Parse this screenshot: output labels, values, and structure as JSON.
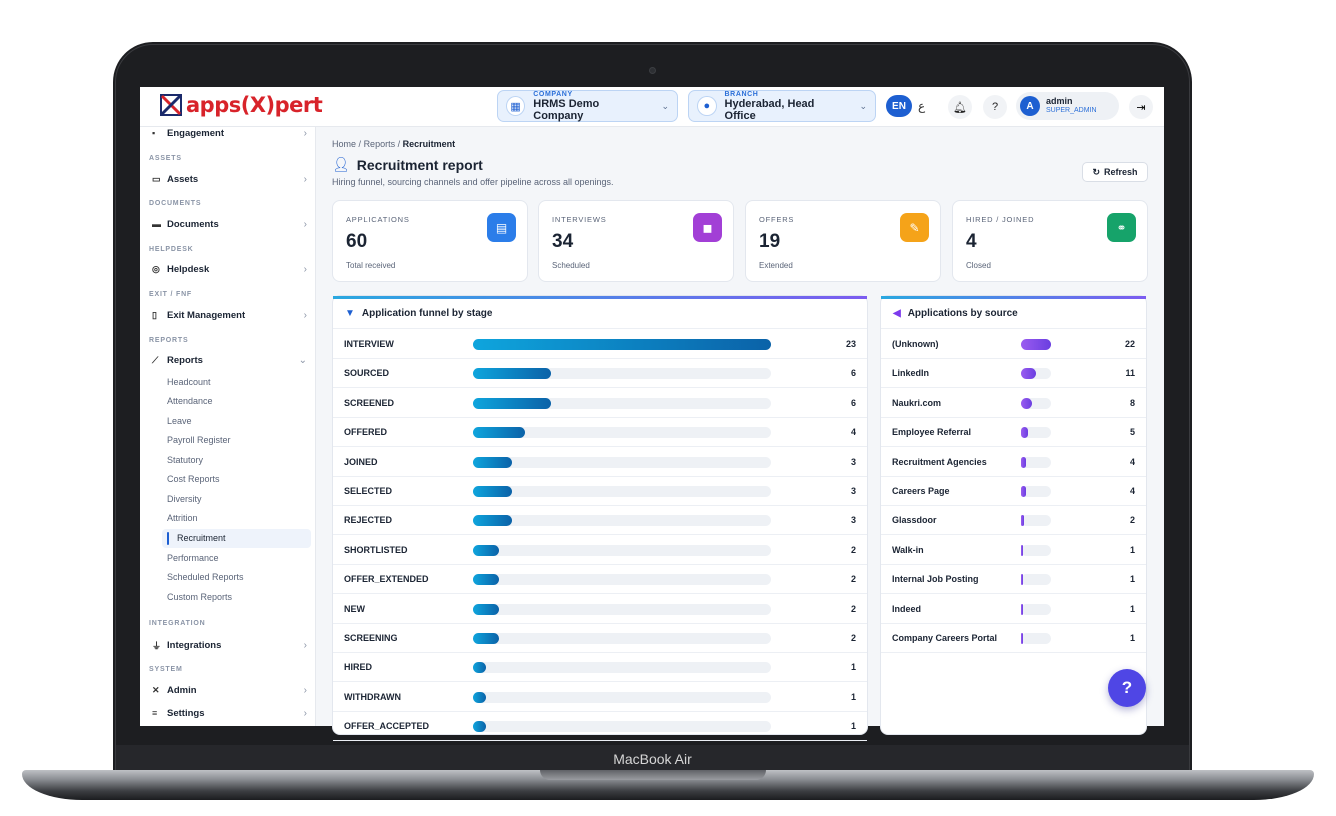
{
  "device": {
    "label": "MacBook Air"
  },
  "app": {
    "logo_text": "apps",
    "logo_text_b": "(X)",
    "logo_text_c": "pert"
  },
  "topbar": {
    "company_caption": "COMPANY",
    "company_value": "HRMS Demo Company",
    "branch_caption": "BRANCH",
    "branch_value": "Hyderabad, Head Office",
    "lang_en": "EN",
    "lang_ar": "ع",
    "user_initial": "A",
    "user_name": "admin",
    "user_role": "SUPER_ADMIN"
  },
  "sidebar": {
    "engagement": "Engagement",
    "sec_assets": "ASSETS",
    "assets": "Assets",
    "sec_documents": "DOCUMENTS",
    "documents": "Documents",
    "sec_helpdesk": "HELPDESK",
    "helpdesk": "Helpdesk",
    "sec_exit": "EXIT / FNF",
    "exit": "Exit Management",
    "sec_reports": "REPORTS",
    "reports": "Reports",
    "sub": [
      "Headcount",
      "Attendance",
      "Leave",
      "Payroll Register",
      "Statutory",
      "Cost Reports",
      "Diversity",
      "Attrition",
      "Recruitment",
      "Performance",
      "Scheduled Reports",
      "Custom Reports"
    ],
    "sec_integration": "INTEGRATION",
    "integrations": "Integrations",
    "sec_system": "SYSTEM",
    "admin": "Admin",
    "settings": "Settings"
  },
  "breadcrumb": {
    "home": "Home",
    "sep": "/",
    "reports": "Reports",
    "current": "Recruitment"
  },
  "page": {
    "title": "Recruitment report",
    "subtitle": "Hiring funnel, sourcing channels and offer pipeline across all openings.",
    "refresh": "Refresh"
  },
  "kpis": [
    {
      "label": "APPLICATIONS",
      "value": "60",
      "sub": "Total received",
      "color": "#2b7de9"
    },
    {
      "label": "INTERVIEWS",
      "value": "34",
      "sub": "Scheduled",
      "color": "#a23fd6"
    },
    {
      "label": "OFFERS",
      "value": "19",
      "sub": "Extended",
      "color": "#f5a319"
    },
    {
      "label": "HIRED / JOINED",
      "value": "4",
      "sub": "Closed",
      "color": "#16a36a"
    }
  ],
  "funnel": {
    "title": "Application funnel by stage",
    "max": 23,
    "rows": [
      {
        "label": "INTERVIEW",
        "value": 23
      },
      {
        "label": "SOURCED",
        "value": 6
      },
      {
        "label": "SCREENED",
        "value": 6
      },
      {
        "label": "OFFERED",
        "value": 4
      },
      {
        "label": "JOINED",
        "value": 3
      },
      {
        "label": "SELECTED",
        "value": 3
      },
      {
        "label": "REJECTED",
        "value": 3
      },
      {
        "label": "SHORTLISTED",
        "value": 2
      },
      {
        "label": "OFFER_EXTENDED",
        "value": 2
      },
      {
        "label": "NEW",
        "value": 2
      },
      {
        "label": "SCREENING",
        "value": 2
      },
      {
        "label": "HIRED",
        "value": 1
      },
      {
        "label": "WITHDRAWN",
        "value": 1
      },
      {
        "label": "OFFER_ACCEPTED",
        "value": 1
      }
    ]
  },
  "sources": {
    "title": "Applications by source",
    "max": 22,
    "rows": [
      {
        "label": "(Unknown)",
        "value": 22
      },
      {
        "label": "LinkedIn",
        "value": 11
      },
      {
        "label": "Naukri.com",
        "value": 8
      },
      {
        "label": "Employee Referral",
        "value": 5
      },
      {
        "label": "Recruitment Agencies",
        "value": 4
      },
      {
        "label": "Careers Page",
        "value": 4
      },
      {
        "label": "Glassdoor",
        "value": 2
      },
      {
        "label": "Walk-in",
        "value": 1
      },
      {
        "label": "Internal Job Posting",
        "value": 1
      },
      {
        "label": "Indeed",
        "value": 1
      },
      {
        "label": "Company Careers Portal",
        "value": 1
      }
    ]
  },
  "help": "?"
}
